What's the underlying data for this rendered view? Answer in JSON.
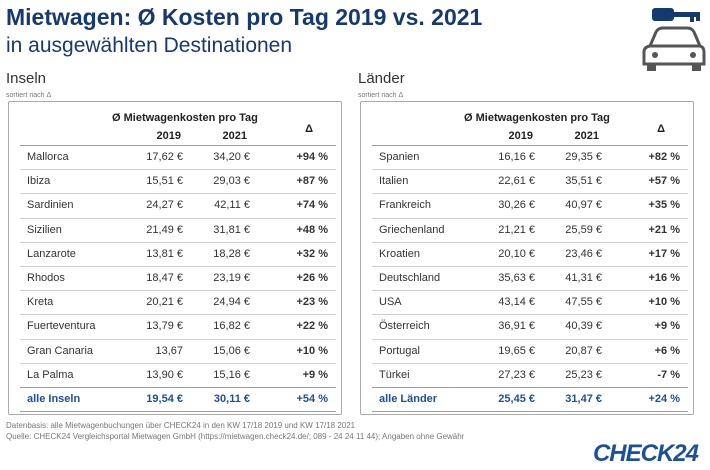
{
  "title": "Mietwagen: Ø Kosten pro Tag 2019 vs. 2021",
  "subtitle": "in ausgewählten Destinationen",
  "panels": [
    {
      "heading": "Inseln",
      "note": "sortiert nach Δ",
      "header": {
        "group": "Ø Mietwagenkosten pro Tag",
        "col1": "2019",
        "col2": "2021",
        "delta": "Δ"
      },
      "rows": [
        [
          "Mallorca",
          "17,62 €",
          "34,20 €",
          "+94 %"
        ],
        [
          "Ibiza",
          "15,51 €",
          "29,03 €",
          "+87 %"
        ],
        [
          "Sardinien",
          "24,27 €",
          "42,11 €",
          "+74 %"
        ],
        [
          "Sizilien",
          "21,49 €",
          "31,81 €",
          "+48 %"
        ],
        [
          "Lanzarote",
          "13,81 €",
          "18,28 €",
          "+32 %"
        ],
        [
          "Rhodos",
          "18,47 €",
          "23,19 €",
          "+26 %"
        ],
        [
          "Kreta",
          "20,21 €",
          "24,94 €",
          "+23 %"
        ],
        [
          "Fuerteventura",
          "13,79 €",
          "16,82  €",
          "+22 %"
        ],
        [
          "Gran Canaria",
          "13,67",
          "15,06 €",
          "+10 %"
        ],
        [
          "La Palma",
          "13,90 €",
          "15,16 €",
          "+9 %"
        ]
      ],
      "total": [
        "alle Inseln",
        "19,54 €",
        "30,11 €",
        "+54 %"
      ]
    },
    {
      "heading": "Länder",
      "note": "sortiert nach Δ",
      "header": {
        "group": "Ø Mietwagenkosten pro Tag",
        "col1": "2019",
        "col2": "2021",
        "delta": "Δ"
      },
      "rows": [
        [
          "Spanien",
          "16,16 €",
          "29,35 €",
          "+82 %"
        ],
        [
          "Italien",
          "22,61 €",
          "35,51 €",
          "+57 %"
        ],
        [
          "Frankreich",
          "30,26 €",
          "40,97 €",
          "+35 %"
        ],
        [
          "Griechenland",
          "21,21 €",
          "25,59 €",
          "+21 %"
        ],
        [
          "Kroatien",
          "20,10 €",
          "23,46 €",
          "+17 %"
        ],
        [
          "Deutschland",
          "35,63 €",
          "41,31 €",
          "+16 %"
        ],
        [
          "USA",
          "43,14 €",
          "47,55 €",
          "+10 %"
        ],
        [
          "Österreich",
          "36,91 €",
          "40,39 €",
          "+9 %"
        ],
        [
          "Portugal",
          "19,65 €",
          "20,87 €",
          "+6 %"
        ],
        [
          "Türkei",
          "27,23 €",
          "25,23 €",
          "-7 %"
        ]
      ],
      "total": [
        "alle Länder",
        "25,45 €",
        "31,47 €",
        "+24 %"
      ]
    }
  ],
  "footer": [
    "Datenbasis: alle Mietwagenbuchungen über CHECK24 in den KW 17/18 2019 und KW 17/18 2021",
    "Quelle: CHECK24 Vergleichsportal Mietwagen GmbH (https://mietwagen.check24.de/; 089 - 24 24 11 44); Angaben ohne Gewähr"
  ],
  "logo": "CHECK24"
}
